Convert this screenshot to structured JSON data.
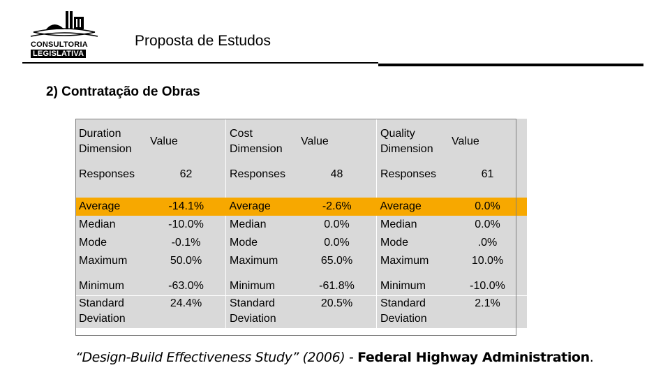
{
  "header": {
    "logo_line1": "CONSULTORIA",
    "logo_line2": "LEGISLATIVA",
    "title": "Proposta de Estudos"
  },
  "section_title": "2) Contratação de Obras",
  "table": {
    "columns": [
      {
        "dimension": "Duration Dimension",
        "value_label": "Value"
      },
      {
        "dimension": "Cost Dimension",
        "value_label": "Value"
      },
      {
        "dimension": "Quality Dimension",
        "value_label": "Value"
      }
    ],
    "rows": [
      {
        "label": "Responses",
        "values": [
          "62",
          "48",
          "61"
        ]
      },
      {
        "label": "Average",
        "values": [
          "-14.1%",
          "-2.6%",
          "0.0%"
        ]
      },
      {
        "label": "Median",
        "values": [
          "-10.0%",
          "0.0%",
          "0.0%"
        ]
      },
      {
        "label": "Mode",
        "values": [
          "-0.1%",
          "0.0%",
          ".0%"
        ]
      },
      {
        "label": "Maximum",
        "values": [
          "50.0%",
          "65.0%",
          "10.0%"
        ]
      },
      {
        "label": "Minimum",
        "values": [
          "-63.0%",
          "-61.8%",
          "-10.0%"
        ]
      },
      {
        "label": "Standard Deviation",
        "values": [
          "24.4%",
          "20.5%",
          "2.1%"
        ]
      }
    ],
    "highlight_color": "#f7a800",
    "cell_color": "#d9d9d9"
  },
  "citation": {
    "title": "“Design-Build Effectiveness Study” (2006)",
    "separator": " - ",
    "source": "Federal Highway Administration",
    "end": "."
  }
}
